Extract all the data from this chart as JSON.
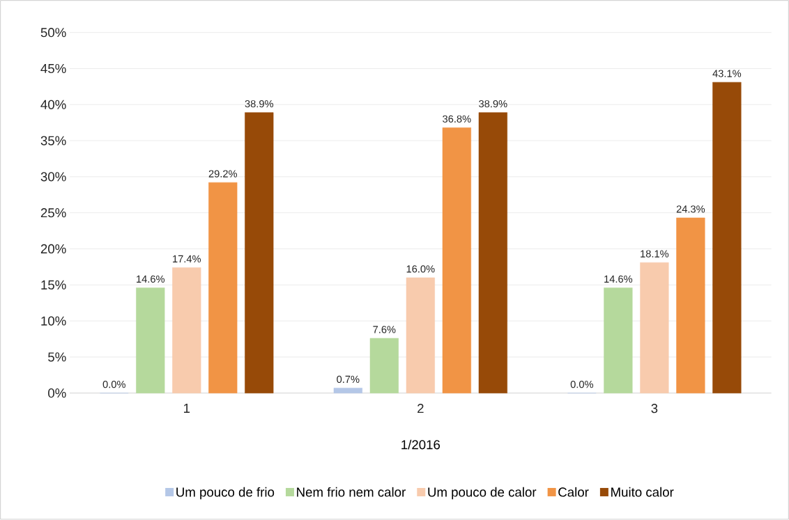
{
  "chart_data": {
    "type": "bar",
    "xlabel": "1/2016",
    "categories": [
      "1",
      "2",
      "3"
    ],
    "series": [
      {
        "name": "Um pouco de frio",
        "color": "#b4c7e7",
        "values": [
          0.0,
          0.7,
          0.0
        ],
        "value_labels": [
          "0.0%",
          "0.7%",
          "0.0%"
        ]
      },
      {
        "name": "Nem frio nem calor",
        "color": "#b5d99c",
        "values": [
          14.6,
          7.6,
          14.6
        ],
        "value_labels": [
          "14.6%",
          "7.6%",
          "14.6%"
        ]
      },
      {
        "name": "Um pouco de calor",
        "color": "#f8cbad",
        "values": [
          17.4,
          16.0,
          18.1
        ],
        "value_labels": [
          "17.4%",
          "16.0%",
          "18.1%"
        ]
      },
      {
        "name": "Calor",
        "color": "#f19445",
        "values": [
          29.2,
          36.8,
          24.3
        ],
        "value_labels": [
          "29.2%",
          "36.8%",
          "24.3%"
        ]
      },
      {
        "name": "Muito calor",
        "color": "#974a08",
        "values": [
          38.9,
          38.9,
          43.1
        ],
        "value_labels": [
          "38.9%",
          "38.9%",
          "43.1%"
        ]
      }
    ],
    "ylim": [
      0,
      50
    ],
    "yticks": [
      {
        "value": 0,
        "label": "0%"
      },
      {
        "value": 5,
        "label": "5%"
      },
      {
        "value": 10,
        "label": "10%"
      },
      {
        "value": 15,
        "label": "15%"
      },
      {
        "value": 20,
        "label": "20%"
      },
      {
        "value": 25,
        "label": "25%"
      },
      {
        "value": 30,
        "label": "30%"
      },
      {
        "value": 35,
        "label": "35%"
      },
      {
        "value": 40,
        "label": "40%"
      },
      {
        "value": 45,
        "label": "45%"
      },
      {
        "value": 50,
        "label": "50%"
      }
    ],
    "grid": "y",
    "legend": "bottom"
  }
}
